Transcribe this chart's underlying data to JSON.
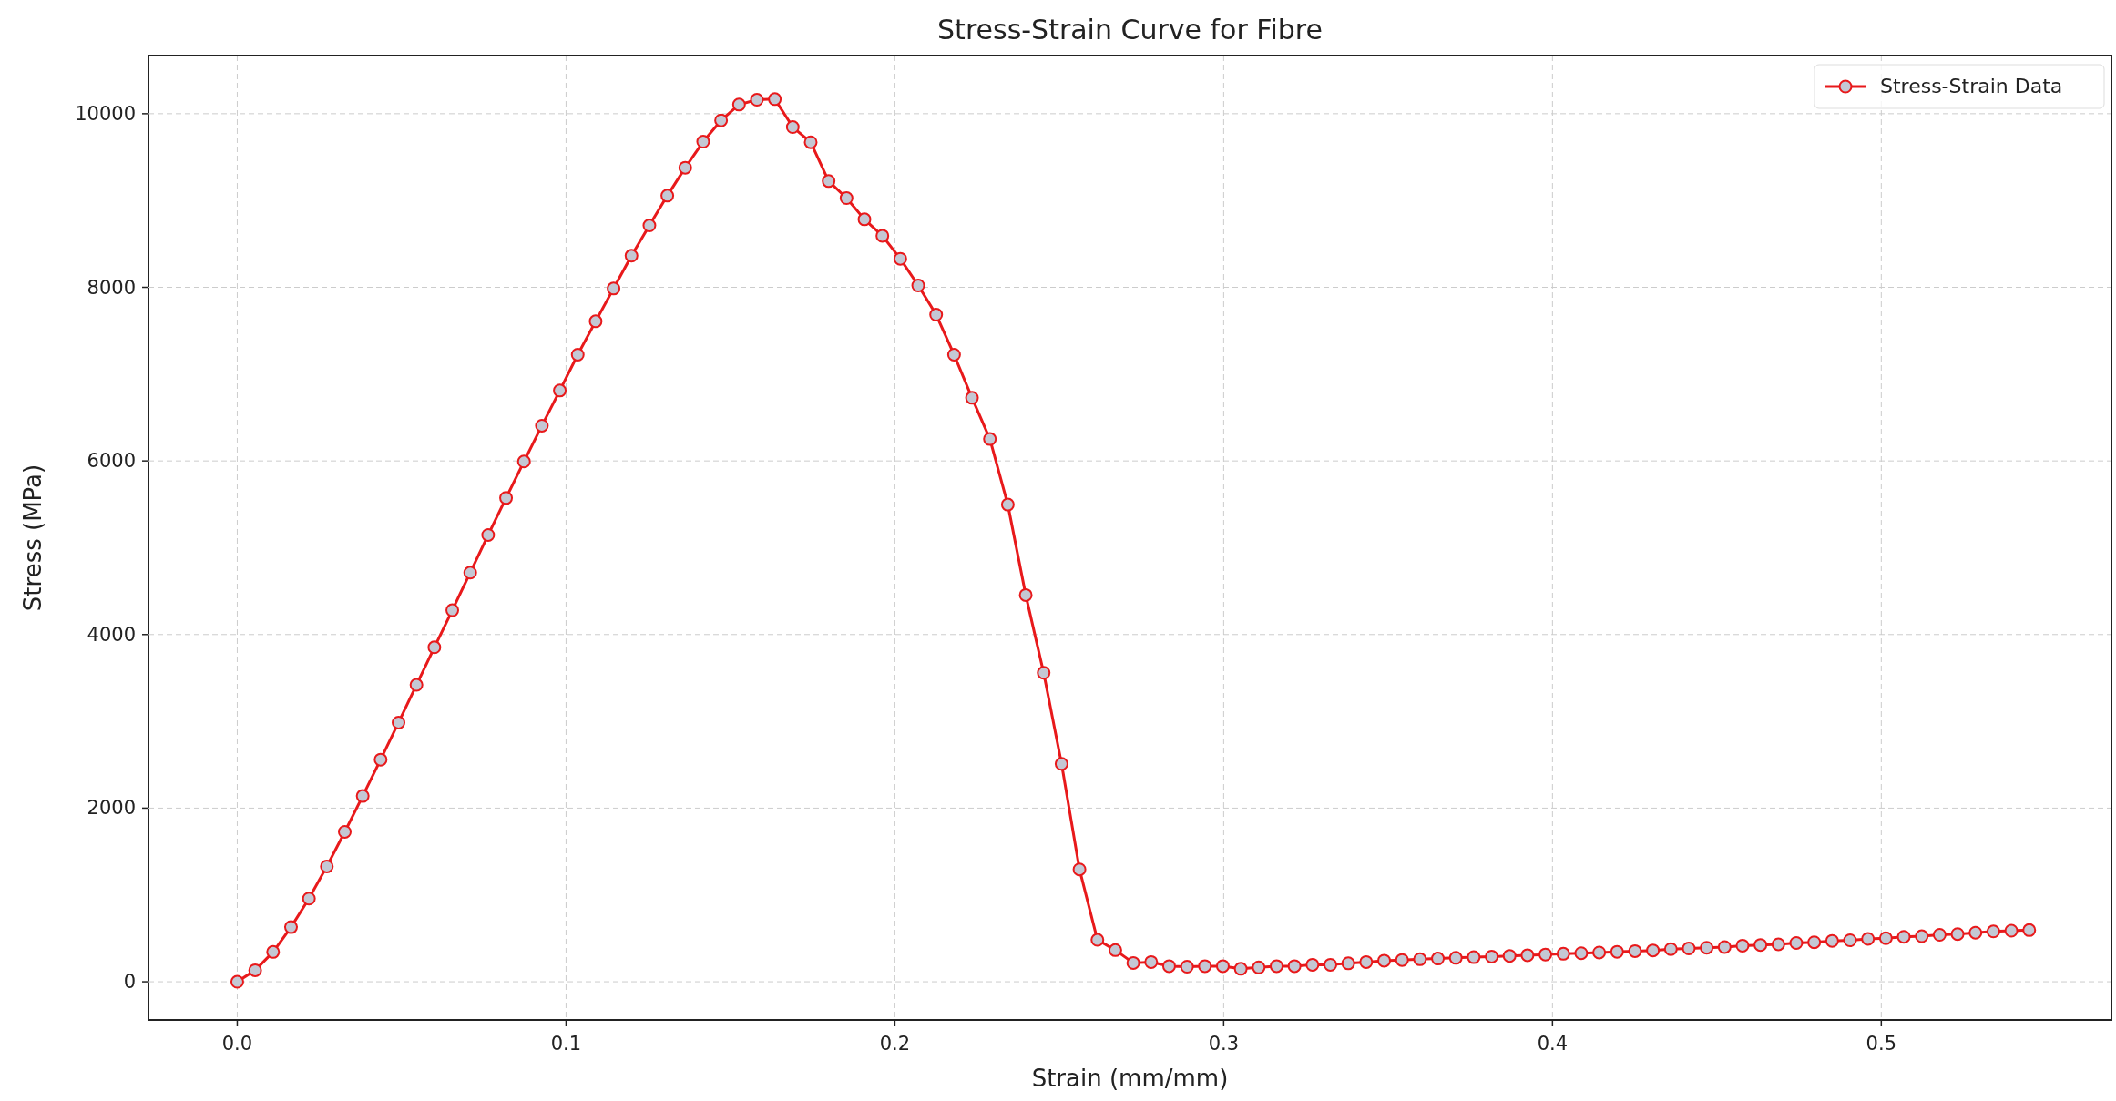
{
  "chart_data": {
    "type": "line",
    "title": "Stress-Strain Curve for Fibre",
    "xlabel": "Strain (mm/mm)",
    "ylabel": "Stress (MPa)",
    "x": [
      0,
      0.00545,
      0.0109,
      0.01635,
      0.0218,
      0.02725,
      0.0327,
      0.03815,
      0.0436,
      0.04905,
      0.0545,
      0.05995,
      0.0654,
      0.07085,
      0.0763,
      0.08175,
      0.0872,
      0.09265,
      0.0981,
      0.10355,
      0.109,
      0.11445,
      0.1199,
      0.12535,
      0.1308,
      0.13625,
      0.1417,
      0.14715,
      0.1526,
      0.15805,
      0.1635,
      0.16895,
      0.1744,
      0.17985,
      0.1853,
      0.19075,
      0.1962,
      0.20165,
      0.2071,
      0.21255,
      0.218,
      0.22345,
      0.2289,
      0.23435,
      0.2398,
      0.24525,
      0.2507,
      0.25615,
      0.2616,
      0.26705,
      0.2725,
      0.27795,
      0.2834,
      0.28885,
      0.2943,
      0.29975,
      0.3052,
      0.31065,
      0.3161,
      0.32155,
      0.327,
      0.33245,
      0.3379,
      0.34335,
      0.3488,
      0.35425,
      0.3597,
      0.36515,
      0.3706,
      0.37605,
      0.3815,
      0.38695,
      0.3924,
      0.39785,
      0.4033,
      0.40875,
      0.4142,
      0.41965,
      0.4251,
      0.43055,
      0.436,
      0.44145,
      0.4469,
      0.45235,
      0.4578,
      0.46325,
      0.4687,
      0.47415,
      0.4796,
      0.48505,
      0.4905,
      0.49595,
      0.5014,
      0.50685,
      0.5123,
      0.51775,
      0.5232,
      0.52865,
      0.5341,
      0.53955,
      0.545
    ],
    "series": [
      {
        "name": "Stress-Strain Data",
        "color": "#e8191b",
        "values": [
          0,
          133,
          343,
          629,
          958,
          1329,
          1727,
          2140,
          2559,
          2986,
          3420,
          3853,
          4280,
          4713,
          5147,
          5573,
          5993,
          6406,
          6811,
          7224,
          7608,
          7986,
          8364,
          8713,
          9056,
          9378,
          9678,
          9923,
          10105,
          10161,
          10168,
          9846,
          9671,
          9224,
          9028,
          8783,
          8594,
          8329,
          8021,
          7685,
          7224,
          6727,
          6252,
          5497,
          4455,
          3559,
          2510,
          1294,
          483,
          364,
          217,
          227,
          180,
          173,
          180,
          180,
          149,
          165,
          180,
          180,
          196,
          196,
          212,
          227,
          243,
          251,
          259,
          267,
          275,
          283,
          290,
          298,
          306,
          314,
          322,
          329,
          337,
          345,
          353,
          361,
          376,
          384,
          392,
          400,
          416,
          424,
          431,
          447,
          455,
          471,
          478,
          494,
          502,
          518,
          525,
          541,
          549,
          565,
          580,
          588,
          595
        ]
      }
    ],
    "xlim": [
      -0.027,
      0.57
    ],
    "xticks": [
      {
        "value": 0,
        "label": "0.0"
      },
      0.1,
      0.2,
      0.3,
      0.4,
      0.5
    ],
    "ylim": [
      -440,
      10670
    ],
    "yticks": [
      0,
      2000,
      4000,
      6000,
      8000,
      10000
    ],
    "grid": true,
    "legend": "top right",
    "marker": "circle",
    "line_style": "solid"
  }
}
